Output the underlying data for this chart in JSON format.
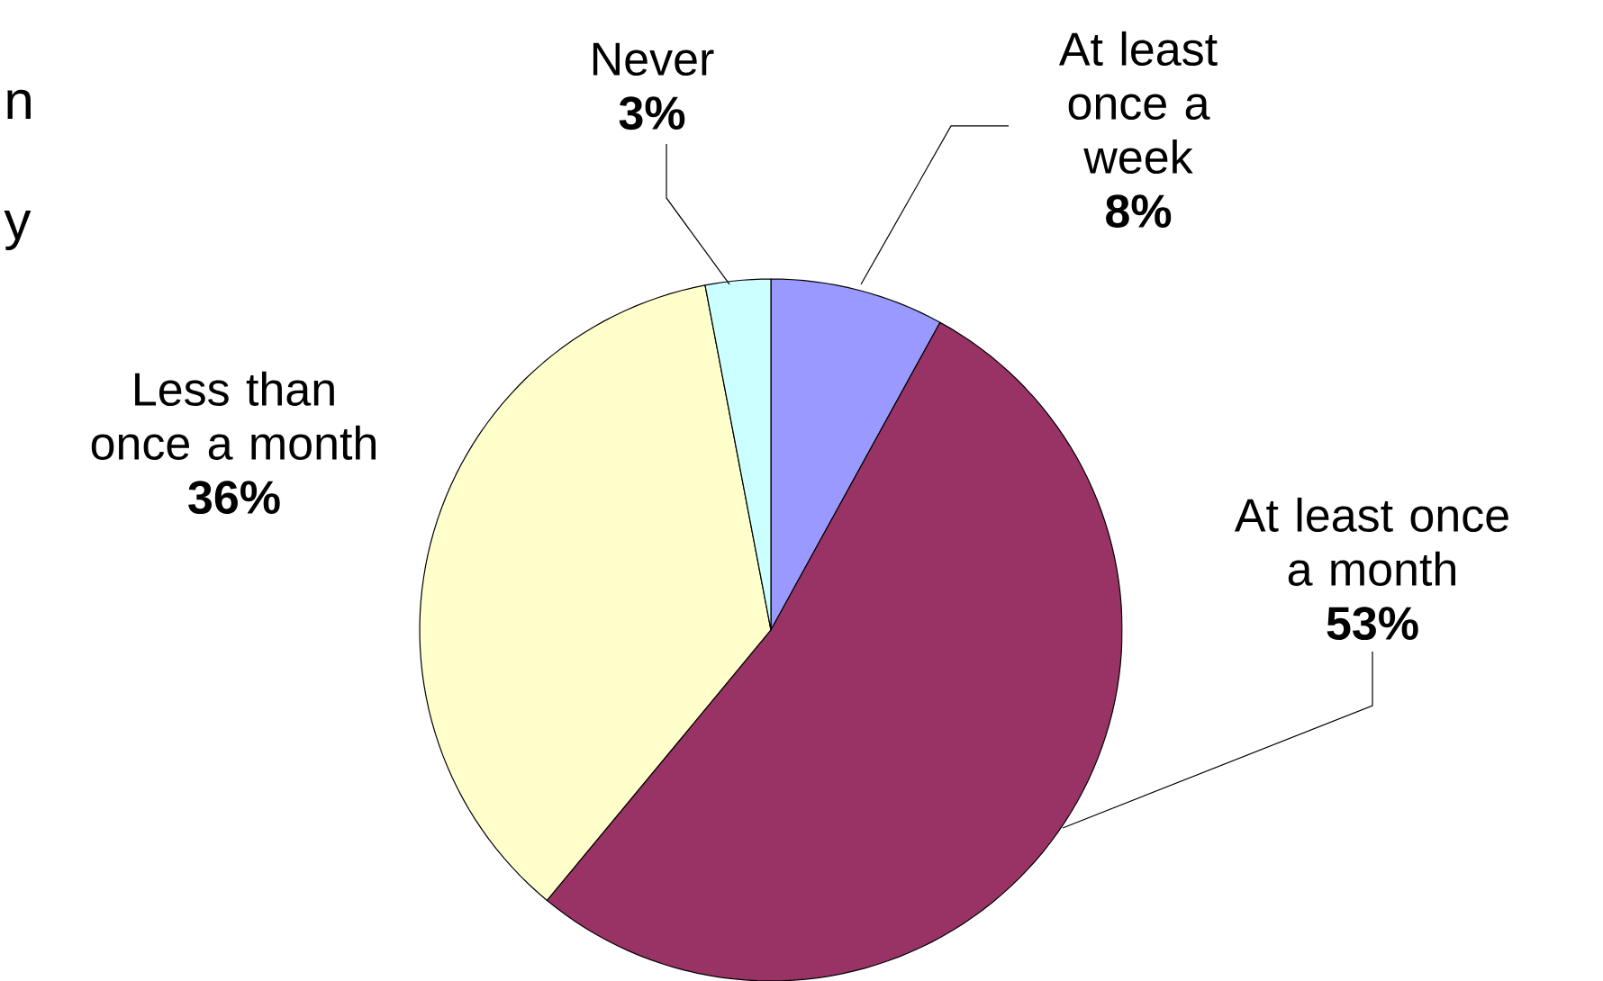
{
  "chart_data": {
    "type": "pie",
    "categories": [
      "At least once a week",
      "At least once a month",
      "Less than once a month",
      "Never"
    ],
    "values": [
      8,
      53,
      36,
      3
    ],
    "value_labels": [
      "8%",
      "53%",
      "36%",
      "3%"
    ],
    "colors": [
      "#9999ff",
      "#993366",
      "#ffffcc",
      "#ccffff"
    ],
    "annotations": [
      "n",
      "y"
    ]
  }
}
